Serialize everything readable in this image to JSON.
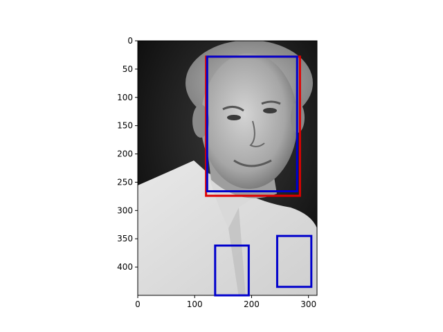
{
  "chart_data": {
    "type": "image",
    "image_description_hidden": true,
    "xlim": [
      0,
      315
    ],
    "ylim": [
      450,
      0
    ],
    "x_ticks": [
      0,
      100,
      200,
      300
    ],
    "y_ticks": [
      0,
      50,
      100,
      150,
      200,
      250,
      300,
      350,
      400
    ],
    "boxes": [
      {
        "color": "#e00000",
        "x0": 120,
        "y0": 28,
        "x1": 285,
        "y1": 274
      },
      {
        "color": "#0000cc",
        "x0": 122,
        "y0": 28,
        "x1": 280,
        "y1": 266
      },
      {
        "color": "#0000cc",
        "x0": 136,
        "y0": 362,
        "x1": 195,
        "y1": 450
      },
      {
        "color": "#0000cc",
        "x0": 245,
        "y0": 345,
        "x1": 305,
        "y1": 435
      }
    ]
  }
}
